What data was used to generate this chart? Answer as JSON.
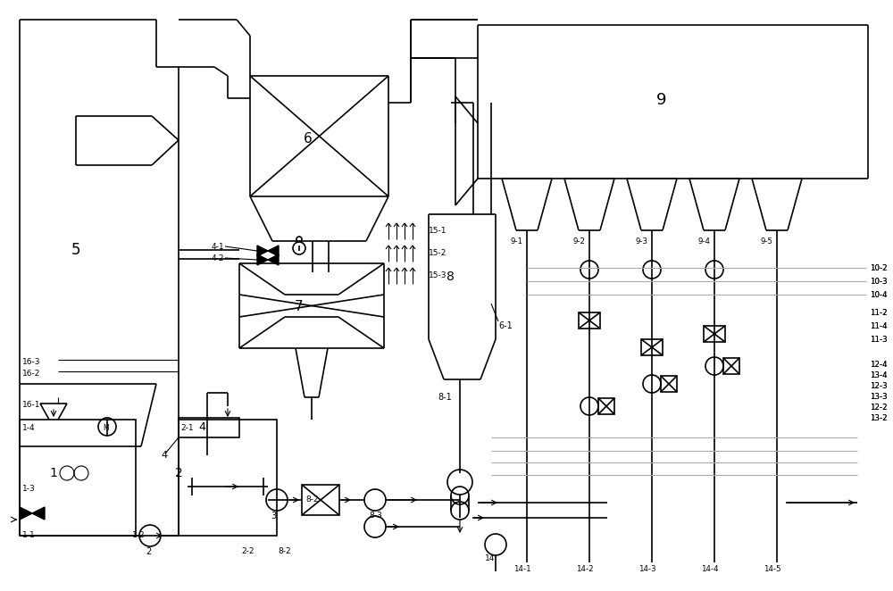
{
  "bg": "#ffffff",
  "lc": "#000000",
  "gc": "#aaaaaa",
  "lw": 1.2,
  "thin": 0.8
}
